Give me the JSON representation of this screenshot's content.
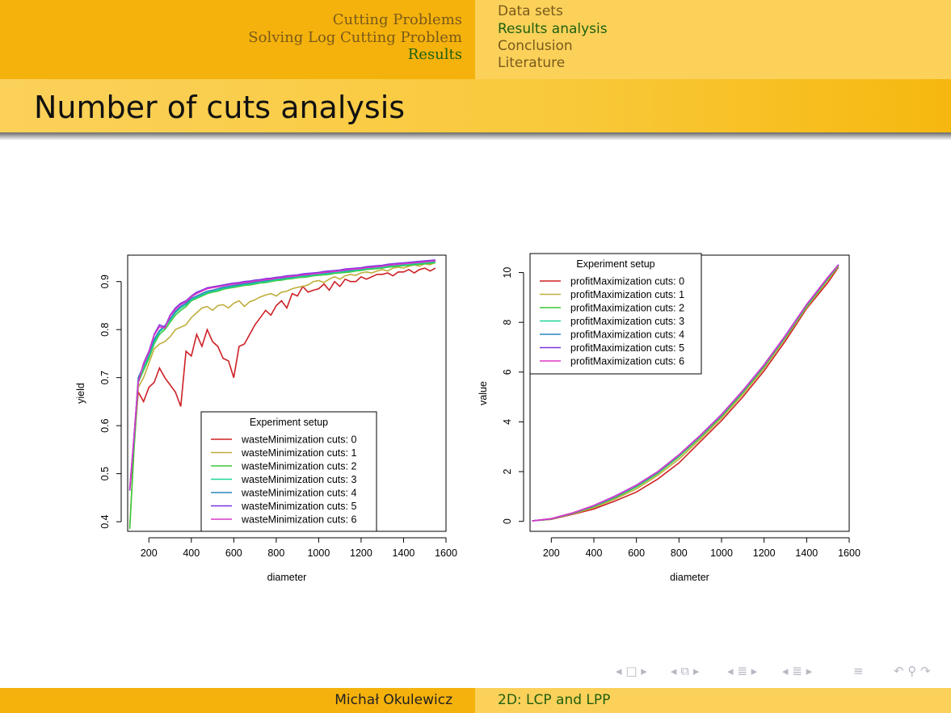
{
  "header": {
    "sections": [
      "Cutting Problems",
      "Solving Log Cutting Problem",
      "Results"
    ],
    "subsections": [
      "Data sets",
      "Results analysis",
      "Conclusion",
      "Literature"
    ]
  },
  "frame_title": "Number of cuts analysis",
  "footer": {
    "author": "Michał Okulewicz",
    "talk": "2D: LCP and LPP"
  },
  "colors": {
    "series": [
      "#cd2026",
      "#bfae3c",
      "#3cc83c",
      "#1fd39a",
      "#2a86bd",
      "#7a34e0",
      "#dc38c9"
    ]
  },
  "chart_data": [
    {
      "type": "line",
      "xlabel": "diameter",
      "ylabel": "yield",
      "xlim": [
        100,
        1600
      ],
      "ylim": [
        0.38,
        0.955
      ],
      "xticks": [
        200,
        400,
        600,
        800,
        1000,
        1200,
        1400,
        1600
      ],
      "yticks": [
        0.4,
        0.5,
        0.6,
        0.7,
        0.8,
        0.9
      ],
      "legend": {
        "title": "Experiment setup",
        "position": "bottom-center"
      },
      "grid": false,
      "x": [
        110,
        130,
        150,
        175,
        200,
        225,
        250,
        275,
        300,
        325,
        350,
        375,
        400,
        425,
        450,
        475,
        500,
        525,
        550,
        575,
        600,
        625,
        650,
        675,
        700,
        725,
        750,
        775,
        800,
        825,
        850,
        875,
        900,
        925,
        950,
        975,
        1000,
        1025,
        1050,
        1075,
        1100,
        1125,
        1150,
        1175,
        1200,
        1225,
        1250,
        1275,
        1300,
        1325,
        1350,
        1375,
        1400,
        1425,
        1450,
        1475,
        1500,
        1525,
        1550
      ],
      "series": [
        {
          "name": "wasteMinimization cuts: 0",
          "values": [
            0.465,
            0.56,
            0.67,
            0.65,
            0.68,
            0.69,
            0.72,
            0.7,
            0.685,
            0.67,
            0.64,
            0.755,
            0.745,
            0.79,
            0.765,
            0.8,
            0.775,
            0.765,
            0.74,
            0.735,
            0.7,
            0.765,
            0.77,
            0.79,
            0.81,
            0.825,
            0.84,
            0.83,
            0.85,
            0.86,
            0.845,
            0.875,
            0.87,
            0.89,
            0.878,
            0.882,
            0.885,
            0.895,
            0.882,
            0.9,
            0.89,
            0.905,
            0.9,
            0.9,
            0.91,
            0.905,
            0.91,
            0.915,
            0.915,
            0.918,
            0.912,
            0.92,
            0.92,
            0.925,
            0.918,
            0.925,
            0.928,
            0.922,
            0.928
          ]
        },
        {
          "name": "wasteMinimization cuts: 1",
          "values": [
            0.39,
            0.55,
            0.68,
            0.7,
            0.73,
            0.76,
            0.77,
            0.775,
            0.785,
            0.8,
            0.805,
            0.81,
            0.825,
            0.835,
            0.845,
            0.848,
            0.84,
            0.85,
            0.852,
            0.845,
            0.855,
            0.86,
            0.848,
            0.858,
            0.862,
            0.868,
            0.872,
            0.875,
            0.87,
            0.878,
            0.88,
            0.885,
            0.888,
            0.89,
            0.893,
            0.9,
            0.902,
            0.898,
            0.905,
            0.91,
            0.905,
            0.912,
            0.915,
            0.913,
            0.918,
            0.92,
            0.918,
            0.922,
            0.925,
            0.922,
            0.928,
            0.93,
            0.928,
            0.932,
            0.935,
            0.932,
            0.937,
            0.935,
            0.94
          ]
        },
        {
          "name": "wasteMinimization cuts: 2",
          "values": [
            0.385,
            0.555,
            0.69,
            0.715,
            0.74,
            0.77,
            0.79,
            0.8,
            0.815,
            0.83,
            0.84,
            0.848,
            0.86,
            0.865,
            0.87,
            0.875,
            0.878,
            0.88,
            0.884,
            0.886,
            0.888,
            0.89,
            0.892,
            0.893,
            0.895,
            0.897,
            0.898,
            0.9,
            0.902,
            0.903,
            0.905,
            0.906,
            0.908,
            0.909,
            0.91,
            0.912,
            0.913,
            0.914,
            0.915,
            0.917,
            0.918,
            0.919,
            0.92,
            0.922,
            0.923,
            0.925,
            0.926,
            0.927,
            0.928,
            0.93,
            0.931,
            0.932,
            0.933,
            0.934,
            0.935,
            0.936,
            0.937,
            0.938,
            0.939
          ]
        },
        {
          "name": "wasteMinimization cuts: 3",
          "values": [
            0.47,
            0.57,
            0.695,
            0.72,
            0.745,
            0.775,
            0.795,
            0.805,
            0.82,
            0.835,
            0.845,
            0.852,
            0.862,
            0.867,
            0.872,
            0.877,
            0.88,
            0.882,
            0.886,
            0.888,
            0.89,
            0.892,
            0.894,
            0.895,
            0.897,
            0.899,
            0.9,
            0.902,
            0.904,
            0.905,
            0.907,
            0.908,
            0.91,
            0.911,
            0.912,
            0.914,
            0.915,
            0.916,
            0.917,
            0.919,
            0.92,
            0.921,
            0.922,
            0.924,
            0.925,
            0.927,
            0.928,
            0.929,
            0.93,
            0.932,
            0.933,
            0.934,
            0.935,
            0.936,
            0.937,
            0.938,
            0.939,
            0.94,
            0.941
          ]
        },
        {
          "name": "wasteMinimization cuts: 4",
          "values": [
            0.47,
            0.575,
            0.7,
            0.725,
            0.75,
            0.78,
            0.798,
            0.808,
            0.822,
            0.838,
            0.848,
            0.855,
            0.865,
            0.87,
            0.875,
            0.88,
            0.882,
            0.885,
            0.888,
            0.89,
            0.892,
            0.894,
            0.896,
            0.897,
            0.899,
            0.901,
            0.902,
            0.904,
            0.906,
            0.907,
            0.909,
            0.91,
            0.912,
            0.913,
            0.914,
            0.916,
            0.917,
            0.918,
            0.919,
            0.921,
            0.922,
            0.923,
            0.924,
            0.926,
            0.927,
            0.929,
            0.93,
            0.931,
            0.932,
            0.934,
            0.935,
            0.936,
            0.937,
            0.938,
            0.939,
            0.94,
            0.941,
            0.942,
            0.943
          ]
        },
        {
          "name": "wasteMinimization cuts: 5",
          "values": [
            0.465,
            0.58,
            0.69,
            0.73,
            0.755,
            0.79,
            0.81,
            0.805,
            0.83,
            0.845,
            0.855,
            0.86,
            0.87,
            0.878,
            0.882,
            0.887,
            0.889,
            0.891,
            0.893,
            0.895,
            0.897,
            0.898,
            0.9,
            0.901,
            0.903,
            0.904,
            0.906,
            0.907,
            0.909,
            0.91,
            0.912,
            0.913,
            0.914,
            0.916,
            0.917,
            0.918,
            0.919,
            0.921,
            0.922,
            0.923,
            0.924,
            0.926,
            0.927,
            0.928,
            0.929,
            0.931,
            0.932,
            0.933,
            0.934,
            0.936,
            0.937,
            0.938,
            0.939,
            0.94,
            0.941,
            0.942,
            0.943,
            0.944,
            0.945
          ]
        },
        {
          "name": "wasteMinimization cuts: 6",
          "values": [
            0.468,
            0.578,
            0.692,
            0.728,
            0.752,
            0.788,
            0.806,
            0.803,
            0.828,
            0.842,
            0.852,
            0.858,
            0.868,
            0.875,
            0.88,
            0.885,
            0.887,
            0.889,
            0.891,
            0.893,
            0.895,
            0.896,
            0.898,
            0.899,
            0.901,
            0.902,
            0.904,
            0.905,
            0.907,
            0.908,
            0.91,
            0.911,
            0.912,
            0.914,
            0.915,
            0.916,
            0.917,
            0.919,
            0.92,
            0.921,
            0.922,
            0.924,
            0.925,
            0.926,
            0.927,
            0.929,
            0.93,
            0.931,
            0.932,
            0.934,
            0.935,
            0.936,
            0.937,
            0.938,
            0.939,
            0.94,
            0.941,
            0.942,
            0.943
          ]
        }
      ]
    },
    {
      "type": "line",
      "xlabel": "diameter",
      "ylabel": "value",
      "xlim": [
        100,
        1600
      ],
      "ylim": [
        -0.4,
        10.7
      ],
      "xticks": [
        200,
        400,
        600,
        800,
        1000,
        1200,
        1400,
        1600
      ],
      "yticks": [
        0,
        2,
        4,
        6,
        8,
        10
      ],
      "legend": {
        "title": "Experiment setup",
        "position": "top-left"
      },
      "grid": false,
      "x": [
        110,
        200,
        300,
        400,
        500,
        600,
        700,
        800,
        900,
        1000,
        1100,
        1200,
        1300,
        1400,
        1500,
        1550
      ],
      "series": [
        {
          "name": "profitMaximization cuts: 0",
          "values": [
            0.02,
            0.08,
            0.28,
            0.5,
            0.82,
            1.18,
            1.7,
            2.35,
            3.2,
            4.05,
            5.0,
            6.05,
            7.25,
            8.55,
            9.6,
            10.22
          ]
        },
        {
          "name": "profitMaximization cuts: 1",
          "values": [
            0.02,
            0.09,
            0.3,
            0.55,
            0.9,
            1.3,
            1.85,
            2.5,
            3.3,
            4.15,
            5.1,
            6.15,
            7.35,
            8.6,
            9.7,
            10.25
          ]
        },
        {
          "name": "profitMaximization cuts: 2",
          "values": [
            0.02,
            0.1,
            0.32,
            0.6,
            0.95,
            1.38,
            1.92,
            2.6,
            3.38,
            4.22,
            5.18,
            6.22,
            7.4,
            8.65,
            9.75,
            10.28
          ]
        },
        {
          "name": "profitMaximization cuts: 3",
          "values": [
            0.02,
            0.1,
            0.33,
            0.62,
            0.98,
            1.42,
            1.96,
            2.64,
            3.42,
            4.26,
            5.22,
            6.26,
            7.43,
            8.68,
            9.78,
            10.3
          ]
        },
        {
          "name": "profitMaximization cuts: 4",
          "values": [
            0.02,
            0.1,
            0.33,
            0.63,
            1.0,
            1.44,
            1.98,
            2.66,
            3.44,
            4.28,
            5.24,
            6.28,
            7.45,
            8.7,
            9.8,
            10.31
          ]
        },
        {
          "name": "profitMaximization cuts: 5",
          "values": [
            0.02,
            0.11,
            0.34,
            0.64,
            1.02,
            1.46,
            2.0,
            2.68,
            3.46,
            4.3,
            5.26,
            6.3,
            7.47,
            8.72,
            9.82,
            10.32
          ]
        },
        {
          "name": "profitMaximization cuts: 6",
          "values": [
            0.02,
            0.11,
            0.34,
            0.64,
            1.01,
            1.45,
            1.99,
            2.67,
            3.45,
            4.29,
            5.25,
            6.29,
            7.46,
            8.71,
            9.81,
            10.31
          ]
        }
      ]
    }
  ],
  "nav_icons": [
    "nav-frame-prev-icon",
    "nav-frame-icon",
    "nav-frame-next-icon",
    "nav-subsection-prev-icon",
    "nav-subsection-icon",
    "nav-subsection-next-icon",
    "nav-section-prev-icon",
    "nav-section-icon",
    "nav-section-next-icon",
    "nav-align-icon",
    "nav-undo-icon",
    "nav-search-icon",
    "nav-redo-icon"
  ]
}
